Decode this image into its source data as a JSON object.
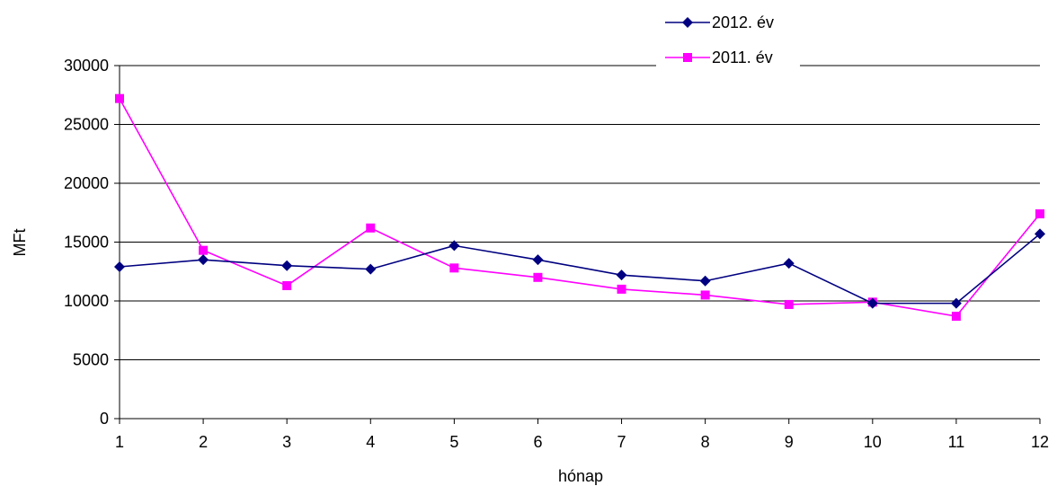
{
  "chart_data": {
    "type": "line",
    "x": [
      1,
      2,
      3,
      4,
      5,
      6,
      7,
      8,
      9,
      10,
      11,
      12
    ],
    "xlabel": "hónap",
    "ylabel": "MFt",
    "ylim": [
      0,
      30000
    ],
    "yticks": [
      0,
      5000,
      10000,
      15000,
      20000,
      25000,
      30000
    ],
    "grid": true,
    "legend_position": "top-right",
    "series": [
      {
        "name": "2012. év",
        "color": "#000080",
        "marker": "diamond",
        "values": [
          12900,
          13500,
          13000,
          12700,
          14700,
          13500,
          12200,
          11700,
          13200,
          9800,
          9800,
          15700
        ]
      },
      {
        "name": "2011. év",
        "color": "#ff00ff",
        "marker": "square",
        "values": [
          27200,
          14300,
          11300,
          16200,
          12800,
          12000,
          11000,
          10500,
          9700,
          9900,
          8700,
          17400
        ]
      }
    ]
  }
}
